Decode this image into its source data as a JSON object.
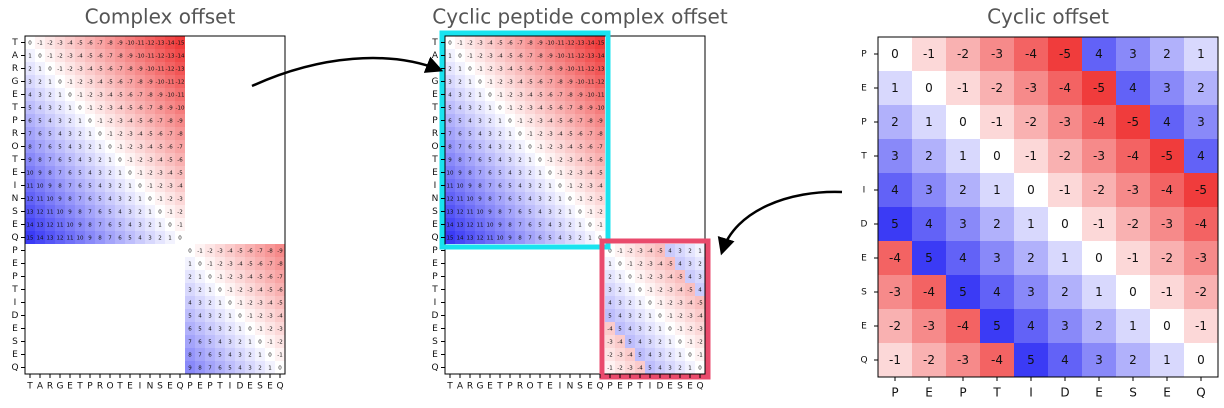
{
  "positive_color": "#3b3bf5",
  "negative_color": "#f03c3c",
  "panels": [
    {
      "title": "Complex offset",
      "clim": [
        -15,
        15
      ],
      "labels": [
        "T",
        "A",
        "R",
        "G",
        "E",
        "T",
        "P",
        "R",
        "O",
        "T",
        "E",
        "I",
        "N",
        "S",
        "E",
        "Q",
        "P",
        "E",
        "P",
        "T",
        "I",
        "D",
        "E",
        "S",
        "E",
        "Q"
      ],
      "blocks": [
        [
          [
            0,
            -1,
            -2,
            -3,
            -4,
            -5,
            -6,
            -7,
            -8,
            -9,
            -10,
            -11,
            -12,
            -13,
            -14,
            -15
          ],
          [
            1,
            0,
            -1,
            -2,
            -3,
            -4,
            -5,
            -6,
            -7,
            -8,
            -9,
            -10,
            -11,
            -12,
            -13,
            -14
          ],
          [
            2,
            1,
            0,
            -1,
            -2,
            -3,
            -4,
            -5,
            -6,
            -7,
            -8,
            -9,
            -10,
            -11,
            -12,
            -13
          ],
          [
            3,
            2,
            1,
            0,
            -1,
            -2,
            -3,
            -4,
            -5,
            -6,
            -7,
            -8,
            -9,
            -10,
            -11,
            -12
          ],
          [
            4,
            3,
            2,
            1,
            0,
            -1,
            -2,
            -3,
            -4,
            -5,
            -6,
            -7,
            -8,
            -9,
            -10,
            -11
          ],
          [
            5,
            4,
            3,
            2,
            1,
            0,
            -1,
            -2,
            -3,
            -4,
            -5,
            -6,
            -7,
            -8,
            -9,
            -10
          ],
          [
            6,
            5,
            4,
            3,
            2,
            1,
            0,
            -1,
            -2,
            -3,
            -4,
            -5,
            -6,
            -7,
            -8,
            -9
          ],
          [
            7,
            6,
            5,
            4,
            3,
            2,
            1,
            0,
            -1,
            -2,
            -3,
            -4,
            -5,
            -6,
            -7,
            -8
          ],
          [
            8,
            7,
            6,
            5,
            4,
            3,
            2,
            1,
            0,
            -1,
            -2,
            -3,
            -4,
            -5,
            -6,
            -7
          ],
          [
            9,
            8,
            7,
            6,
            5,
            4,
            3,
            2,
            1,
            0,
            -1,
            -2,
            -3,
            -4,
            -5,
            -6
          ],
          [
            10,
            9,
            8,
            7,
            6,
            5,
            4,
            3,
            2,
            1,
            0,
            -1,
            -2,
            -3,
            -4,
            -5
          ],
          [
            11,
            10,
            9,
            8,
            7,
            6,
            5,
            4,
            3,
            2,
            1,
            0,
            -1,
            -2,
            -3,
            -4
          ],
          [
            12,
            11,
            10,
            9,
            8,
            7,
            6,
            5,
            4,
            3,
            2,
            1,
            0,
            -1,
            -2,
            -3
          ],
          [
            13,
            12,
            11,
            10,
            9,
            8,
            7,
            6,
            5,
            4,
            3,
            2,
            1,
            0,
            -1,
            -2
          ],
          [
            14,
            13,
            12,
            11,
            10,
            9,
            8,
            7,
            6,
            5,
            4,
            3,
            2,
            1,
            0,
            -1
          ],
          [
            15,
            14,
            13,
            12,
            11,
            10,
            9,
            8,
            7,
            6,
            5,
            4,
            3,
            2,
            1,
            0
          ]
        ],
        [
          [
            0,
            -1,
            -2,
            -3,
            -4,
            -5,
            -6,
            -7,
            -8,
            -9
          ],
          [
            1,
            0,
            -1,
            -2,
            -3,
            -4,
            -5,
            -6,
            -7,
            -8
          ],
          [
            2,
            1,
            0,
            -1,
            -2,
            -3,
            -4,
            -5,
            -6,
            -7
          ],
          [
            3,
            2,
            1,
            0,
            -1,
            -2,
            -3,
            -4,
            -5,
            -6
          ],
          [
            4,
            3,
            2,
            1,
            0,
            -1,
            -2,
            -3,
            -4,
            -5
          ],
          [
            5,
            4,
            3,
            2,
            1,
            0,
            -1,
            -2,
            -3,
            -4
          ],
          [
            6,
            5,
            4,
            3,
            2,
            1,
            0,
            -1,
            -2,
            -3
          ],
          [
            7,
            6,
            5,
            4,
            3,
            2,
            1,
            0,
            -1,
            -2
          ],
          [
            8,
            7,
            6,
            5,
            4,
            3,
            2,
            1,
            0,
            -1
          ],
          [
            9,
            8,
            7,
            6,
            5,
            4,
            3,
            2,
            1,
            0
          ]
        ]
      ]
    },
    {
      "title": "Cyclic peptide complex offset",
      "clim": [
        -15,
        15
      ],
      "labels": [
        "T",
        "A",
        "R",
        "G",
        "E",
        "T",
        "P",
        "R",
        "O",
        "T",
        "E",
        "I",
        "N",
        "S",
        "E",
        "Q",
        "P",
        "E",
        "P",
        "T",
        "I",
        "D",
        "E",
        "S",
        "E",
        "Q"
      ],
      "blocks": [
        [
          [
            0,
            -1,
            -2,
            -3,
            -4,
            -5,
            -6,
            -7,
            -8,
            -9,
            -10,
            -11,
            -12,
            -13,
            -14,
            -15
          ],
          [
            1,
            0,
            -1,
            -2,
            -3,
            -4,
            -5,
            -6,
            -7,
            -8,
            -9,
            -10,
            -11,
            -12,
            -13,
            -14
          ],
          [
            2,
            1,
            0,
            -1,
            -2,
            -3,
            -4,
            -5,
            -6,
            -7,
            -8,
            -9,
            -10,
            -11,
            -12,
            -13
          ],
          [
            3,
            2,
            1,
            0,
            -1,
            -2,
            -3,
            -4,
            -5,
            -6,
            -7,
            -8,
            -9,
            -10,
            -11,
            -12
          ],
          [
            4,
            3,
            2,
            1,
            0,
            -1,
            -2,
            -3,
            -4,
            -5,
            -6,
            -7,
            -8,
            -9,
            -10,
            -11
          ],
          [
            5,
            4,
            3,
            2,
            1,
            0,
            -1,
            -2,
            -3,
            -4,
            -5,
            -6,
            -7,
            -8,
            -9,
            -10
          ],
          [
            6,
            5,
            4,
            3,
            2,
            1,
            0,
            -1,
            -2,
            -3,
            -4,
            -5,
            -6,
            -7,
            -8,
            -9
          ],
          [
            7,
            6,
            5,
            4,
            3,
            2,
            1,
            0,
            -1,
            -2,
            -3,
            -4,
            -5,
            -6,
            -7,
            -8
          ],
          [
            8,
            7,
            6,
            5,
            4,
            3,
            2,
            1,
            0,
            -1,
            -2,
            -3,
            -4,
            -5,
            -6,
            -7
          ],
          [
            9,
            8,
            7,
            6,
            5,
            4,
            3,
            2,
            1,
            0,
            -1,
            -2,
            -3,
            -4,
            -5,
            -6
          ],
          [
            10,
            9,
            8,
            7,
            6,
            5,
            4,
            3,
            2,
            1,
            0,
            -1,
            -2,
            -3,
            -4,
            -5
          ],
          [
            11,
            10,
            9,
            8,
            7,
            6,
            5,
            4,
            3,
            2,
            1,
            0,
            -1,
            -2,
            -3,
            -4
          ],
          [
            12,
            11,
            10,
            9,
            8,
            7,
            6,
            5,
            4,
            3,
            2,
            1,
            0,
            -1,
            -2,
            -3
          ],
          [
            13,
            12,
            11,
            10,
            9,
            8,
            7,
            6,
            5,
            4,
            3,
            2,
            1,
            0,
            -1,
            -2
          ],
          [
            14,
            13,
            12,
            11,
            10,
            9,
            8,
            7,
            6,
            5,
            4,
            3,
            2,
            1,
            0,
            -1
          ],
          [
            15,
            14,
            13,
            12,
            11,
            10,
            9,
            8,
            7,
            6,
            5,
            4,
            3,
            2,
            1,
            0
          ]
        ],
        [
          [
            0,
            -1,
            -2,
            -3,
            -4,
            -5,
            4,
            3,
            2,
            1
          ],
          [
            1,
            0,
            -1,
            -2,
            -3,
            -4,
            -5,
            4,
            3,
            2
          ],
          [
            2,
            1,
            0,
            -1,
            -2,
            -3,
            -4,
            -5,
            4,
            3
          ],
          [
            3,
            2,
            1,
            0,
            -1,
            -2,
            -3,
            -4,
            -5,
            4
          ],
          [
            4,
            3,
            2,
            1,
            0,
            -1,
            -2,
            -3,
            -4,
            -5
          ],
          [
            5,
            4,
            3,
            2,
            1,
            0,
            -1,
            -2,
            -3,
            -4
          ],
          [
            -4,
            5,
            4,
            3,
            2,
            1,
            0,
            -1,
            -2,
            -3
          ],
          [
            -3,
            -4,
            5,
            4,
            3,
            2,
            1,
            0,
            -1,
            -2
          ],
          [
            -2,
            -3,
            -4,
            5,
            4,
            3,
            2,
            1,
            0,
            -1
          ],
          [
            -1,
            -2,
            -3,
            -4,
            5,
            4,
            3,
            2,
            1,
            0
          ]
        ]
      ]
    },
    {
      "title": "Cyclic offset",
      "clim": [
        -5,
        5
      ],
      "labels": [
        "P",
        "E",
        "P",
        "T",
        "I",
        "D",
        "E",
        "S",
        "E",
        "Q"
      ],
      "blocks": [
        [
          [
            0,
            -1,
            -2,
            -3,
            -4,
            -5,
            4,
            3,
            2,
            1
          ],
          [
            1,
            0,
            -1,
            -2,
            -3,
            -4,
            -5,
            4,
            3,
            2
          ],
          [
            2,
            1,
            0,
            -1,
            -2,
            -3,
            -4,
            -5,
            4,
            3
          ],
          [
            3,
            2,
            1,
            0,
            -1,
            -2,
            -3,
            -4,
            -5,
            4
          ],
          [
            4,
            3,
            2,
            1,
            0,
            -1,
            -2,
            -3,
            -4,
            -5
          ],
          [
            5,
            4,
            3,
            2,
            1,
            0,
            -1,
            -2,
            -3,
            -4
          ],
          [
            -4,
            5,
            4,
            3,
            2,
            1,
            0,
            -1,
            -2,
            -3
          ],
          [
            -3,
            -4,
            5,
            4,
            3,
            2,
            1,
            0,
            -1,
            -2
          ],
          [
            -2,
            -3,
            -4,
            5,
            4,
            3,
            2,
            1,
            0,
            -1
          ],
          [
            -1,
            -2,
            -3,
            -4,
            5,
            4,
            3,
            2,
            1,
            0
          ]
        ]
      ]
    }
  ]
}
